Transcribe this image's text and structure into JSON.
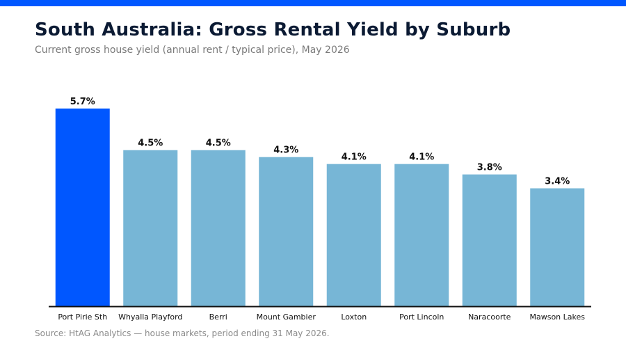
{
  "header": {
    "title": "South Australia: Gross Rental Yield by Suburb",
    "subtitle": "Current gross house yield (annual rent / typical price), May 2026"
  },
  "footer": {
    "source": "Source: HtAG Analytics — house markets, period ending 31 May 2026."
  },
  "colors": {
    "accent_bar": "#0057ff",
    "highlight": "#0057ff",
    "bar": "#77b6d6",
    "axis": "#111111"
  },
  "chart_data": {
    "type": "bar",
    "title": "South Australia: Gross Rental Yield by Suburb",
    "subtitle": "Current gross house yield (annual rent / typical price), May 2026",
    "xlabel": "",
    "ylabel": "",
    "categories": [
      "Port Pirie Sth",
      "Whyalla Playford",
      "Berri",
      "Mount Gambier",
      "Loxton",
      "Port Lincoln",
      "Naracoorte",
      "Mawson Lakes"
    ],
    "values": [
      5.7,
      4.5,
      4.5,
      4.3,
      4.1,
      4.1,
      3.8,
      3.4
    ],
    "value_labels": [
      "5.7%",
      "4.5%",
      "4.5%",
      "4.3%",
      "4.1%",
      "4.1%",
      "3.8%",
      "3.4%"
    ],
    "highlight_index": 0,
    "ylim": [
      0,
      6.2
    ],
    "grid": false,
    "legend": "none"
  }
}
